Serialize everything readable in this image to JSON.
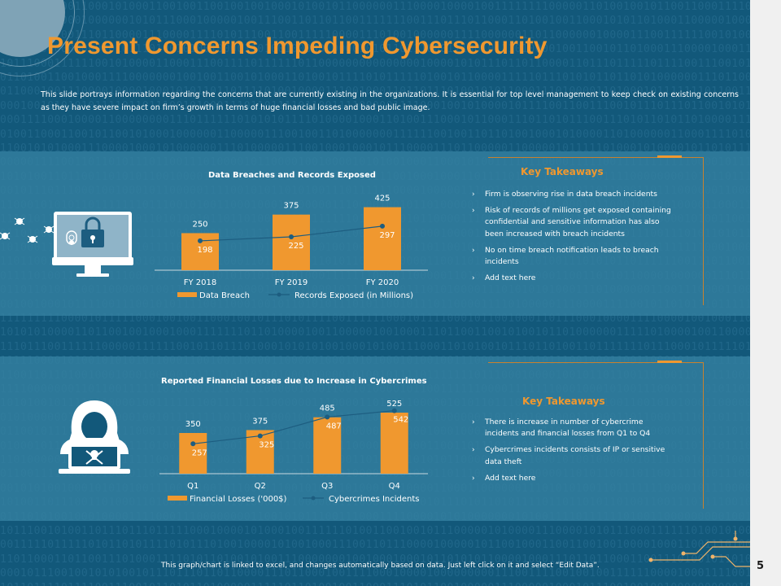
{
  "slide": {
    "title": "Present Concerns Impeding Cybersecurity",
    "description": "This slide portrays information regarding the concerns that are currently existing in the organizations. It is essential for top level management to keep check on existing concerns as they have severe impact on firm’s growth in terms of huge financial losses and bad public image.",
    "footer_note": "This graph/chart is linked to excel, and changes automatically based on data. Just left click on it and select “Edit Data”.",
    "page_number": "5",
    "colors": {
      "background": "#12587a",
      "accent": "#f0982f",
      "band": "#3582a2",
      "line": "#1d5d80"
    }
  },
  "section1": {
    "takeaways_title": "Key Takeaways",
    "takeaways": [
      "Firm is observing rise in data breach incidents",
      "Risk of records of millions get exposed containing confidential and sensitive information has also been increased with breach incidents",
      "No on time breach notification leads to breach incidents",
      "Add text here"
    ],
    "icon": "computer-lock-bugs-icon"
  },
  "section2": {
    "takeaways_title": "Key Takeaways",
    "takeaways": [
      "There is increase in number of cybercrime incidents and financial losses from Q1 to Q4",
      "Cybercrimes incidents consists of IP or sensitive data theft",
      "Add text here"
    ],
    "icon": "hacker-laptop-icon"
  },
  "chart_data": [
    {
      "type": "bar",
      "title": "Data Breaches and Records Exposed",
      "categories": [
        "FY 2018",
        "FY 2019",
        "FY 2020"
      ],
      "series": [
        {
          "name": "Data Breach",
          "kind": "bar",
          "values": [
            250,
            375,
            425
          ]
        },
        {
          "name": "Records Exposed (in Millions)",
          "kind": "line",
          "values": [
            198,
            225,
            297
          ]
        }
      ],
      "ylim": [
        0,
        450
      ],
      "legend": "bottom"
    },
    {
      "type": "bar",
      "title": "Reported Financial Losses due to Increase in Cybercrimes",
      "categories": [
        "Q1",
        "Q2",
        "Q3",
        "Q4"
      ],
      "series": [
        {
          "name": "Financial Losses ('000$)",
          "kind": "bar",
          "values": [
            350,
            375,
            485,
            525
          ]
        },
        {
          "name": "Cybercrimes Incidents",
          "kind": "line",
          "values": [
            257,
            325,
            487,
            542
          ]
        }
      ],
      "ylim": [
        0,
        560
      ],
      "legend": "bottom"
    }
  ]
}
